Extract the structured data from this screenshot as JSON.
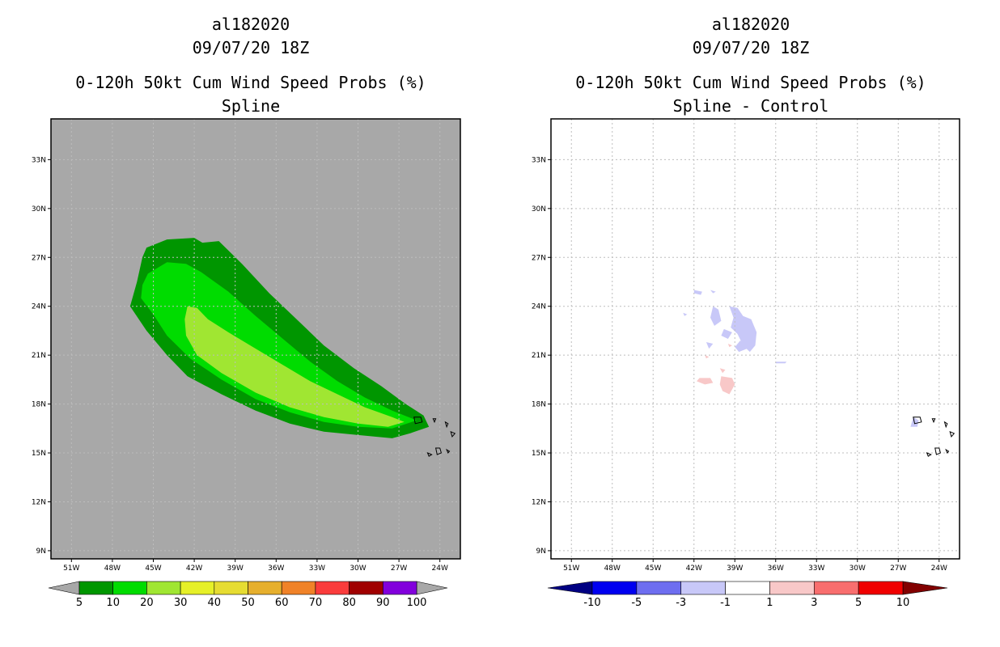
{
  "chart_data": [
    {
      "type": "heatmap",
      "title_lines": [
        "al182020",
        "09/07/20 18Z",
        "0-120h 50kt Cum Wind Speed Probs (%)",
        "Spline"
      ],
      "lon_labels": [
        "51W",
        "48W",
        "45W",
        "42W",
        "39W",
        "36W",
        "33W",
        "30W",
        "27W",
        "24W"
      ],
      "lat_labels": [
        "9N",
        "12N",
        "15N",
        "18N",
        "21N",
        "24N",
        "27N",
        "30N",
        "33N"
      ],
      "lon_range": [
        -52.5,
        -22.5
      ],
      "lat_range": [
        8.5,
        35.5
      ],
      "background_color": "#a8a8a8",
      "levels": [
        "5",
        "10",
        "20",
        "30",
        "40",
        "50",
        "60",
        "70",
        "80",
        "90",
        "100"
      ],
      "level_colors": [
        "#009600",
        "#00dc00",
        "#a0e632",
        "#e6f028",
        "#e6dc32",
        "#e6af2d",
        "#f08228",
        "#fa3c3c",
        "#a00000",
        "#8200dc"
      ],
      "contours": [
        {
          "min": 5,
          "color": "#009600",
          "polygon": [
            [
              -45.5,
              27.6
            ],
            [
              -44,
              28.1
            ],
            [
              -42,
              28.2
            ],
            [
              -41.4,
              27.9
            ],
            [
              -40.2,
              28.0
            ],
            [
              -38.5,
              26.6
            ],
            [
              -36.5,
              24.8
            ],
            [
              -34.5,
              23.2
            ],
            [
              -32.5,
              21.6
            ],
            [
              -30.3,
              20.2
            ],
            [
              -28.3,
              19.1
            ],
            [
              -26.5,
              18.0
            ],
            [
              -25.2,
              17.3
            ],
            [
              -24.8,
              16.6
            ],
            [
              -26.2,
              16.2
            ],
            [
              -27.5,
              15.9
            ],
            [
              -30,
              16.1
            ],
            [
              -32.5,
              16.3
            ],
            [
              -35,
              16.8
            ],
            [
              -37.5,
              17.6
            ],
            [
              -40,
              18.6
            ],
            [
              -42.5,
              19.7
            ],
            [
              -44,
              21.0
            ],
            [
              -45.5,
              22.5
            ],
            [
              -46.7,
              24.0
            ],
            [
              -46.2,
              25.5
            ],
            [
              -45.8,
              27.0
            ]
          ]
        },
        {
          "min": 10,
          "color": "#00dc00",
          "polygon": [
            [
              -45.4,
              26.0
            ],
            [
              -44,
              26.7
            ],
            [
              -42.6,
              26.6
            ],
            [
              -41.5,
              26.1
            ],
            [
              -39.5,
              24.9
            ],
            [
              -37.5,
              23.4
            ],
            [
              -35.5,
              22.0
            ],
            [
              -33.5,
              20.6
            ],
            [
              -31.5,
              19.4
            ],
            [
              -29.5,
              18.4
            ],
            [
              -27.5,
              17.6
            ],
            [
              -25.7,
              17.0
            ],
            [
              -27.5,
              16.5
            ],
            [
              -30,
              16.6
            ],
            [
              -32.5,
              16.9
            ],
            [
              -35,
              17.5
            ],
            [
              -37.5,
              18.3
            ],
            [
              -40,
              19.5
            ],
            [
              -42.3,
              20.8
            ],
            [
              -44,
              22.2
            ],
            [
              -45.0,
              23.5
            ],
            [
              -45.9,
              24.5
            ],
            [
              -45.8,
              25.3
            ]
          ]
        },
        {
          "min": 20,
          "color": "#a0e632",
          "polygon": [
            [
              -42.5,
              24.0
            ],
            [
              -41.8,
              23.9
            ],
            [
              -41.0,
              23.2
            ],
            [
              -39.5,
              22.4
            ],
            [
              -37.5,
              21.4
            ],
            [
              -35.5,
              20.4
            ],
            [
              -33.5,
              19.4
            ],
            [
              -31.5,
              18.6
            ],
            [
              -29.5,
              17.8
            ],
            [
              -27.5,
              17.2
            ],
            [
              -26.6,
              16.9
            ],
            [
              -27.8,
              16.6
            ],
            [
              -30,
              16.8
            ],
            [
              -32.5,
              17.2
            ],
            [
              -35,
              17.8
            ],
            [
              -37.5,
              18.7
            ],
            [
              -40,
              19.9
            ],
            [
              -41.8,
              21.0
            ],
            [
              -42.6,
              22.2
            ],
            [
              -42.7,
              23.2
            ]
          ]
        }
      ]
    },
    {
      "type": "heatmap",
      "title_lines": [
        "al182020",
        "09/07/20 18Z",
        "0-120h 50kt Cum Wind Speed Probs (%)",
        "Spline - Control"
      ],
      "lon_labels": [
        "51W",
        "48W",
        "45W",
        "42W",
        "39W",
        "36W",
        "33W",
        "30W",
        "27W",
        "24W"
      ],
      "lat_labels": [
        "9N",
        "12N",
        "15N",
        "18N",
        "21N",
        "24N",
        "27N",
        "30N",
        "33N"
      ],
      "lon_range": [
        -52.5,
        -22.5
      ],
      "lat_range": [
        8.5,
        35.5
      ],
      "background_color": "#ffffff",
      "levels": [
        "-10",
        "-5",
        "-3",
        "-1",
        "1",
        "3",
        "5",
        "10"
      ],
      "level_colors": [
        "#000082",
        "#0000f0",
        "#6e6ef0",
        "#c8c8f8",
        "#ffffff",
        "#f8c8c8",
        "#f86e6e",
        "#f00000",
        "#820000"
      ],
      "contours": [
        {
          "value": -2,
          "color": "#c8c8f8",
          "polygon": [
            [
              -39.4,
              24.0
            ],
            [
              -38.8,
              23.9
            ],
            [
              -38.4,
              23.4
            ],
            [
              -37.8,
              23.2
            ],
            [
              -37.4,
              22.4
            ],
            [
              -37.5,
              21.6
            ],
            [
              -37.9,
              21.2
            ],
            [
              -38.4,
              21.6
            ],
            [
              -38.8,
              22.3
            ],
            [
              -39.3,
              22.7
            ],
            [
              -39.1,
              23.3
            ]
          ]
        },
        {
          "value": -2,
          "color": "#c8c8f8",
          "polygon": [
            [
              -40.6,
              24.0
            ],
            [
              -40.2,
              23.8
            ],
            [
              -40.0,
              23.1
            ],
            [
              -40.5,
              22.8
            ],
            [
              -40.8,
              23.3
            ]
          ]
        },
        {
          "value": -2,
          "color": "#c8c8f8",
          "polygon": [
            [
              -39.8,
              22.6
            ],
            [
              -39.2,
              22.4
            ],
            [
              -39.5,
              22.0
            ],
            [
              -40.0,
              22.2
            ]
          ]
        },
        {
          "value": -2,
          "color": "#c8c8f8",
          "polygon": [
            [
              -41.1,
              21.8
            ],
            [
              -40.6,
              21.7
            ],
            [
              -40.9,
              21.4
            ]
          ]
        },
        {
          "value": -2,
          "color": "#c8c8f8",
          "polygon": [
            [
              -38.6,
              21.9
            ],
            [
              -38.1,
              21.4
            ],
            [
              -38.7,
              21.2
            ],
            [
              -39.0,
              21.5
            ]
          ]
        },
        {
          "value": -2,
          "color": "#c8c8f8",
          "polygon": [
            [
              -42.0,
              25.0
            ],
            [
              -41.4,
              24.9
            ],
            [
              -41.5,
              24.7
            ],
            [
              -42.0,
              24.8
            ]
          ]
        },
        {
          "value": -2,
          "color": "#c8c8f8",
          "polygon": [
            [
              -40.8,
              25.0
            ],
            [
              -40.4,
              24.9
            ],
            [
              -40.6,
              24.8
            ]
          ]
        },
        {
          "value": -2,
          "color": "#c8c8f8",
          "polygon": [
            [
              -42.8,
              23.6
            ],
            [
              -42.5,
              23.5
            ],
            [
              -42.7,
              23.4
            ]
          ]
        },
        {
          "value": -2,
          "color": "#c8c8f8",
          "polygon": [
            [
              -36.0,
              20.6
            ],
            [
              -35.2,
              20.6
            ],
            [
              -35.3,
              20.5
            ],
            [
              -36.0,
              20.5
            ]
          ]
        },
        {
          "value": -2,
          "color": "#c8c8f8",
          "polygon": [
            [
              -25.9,
              17.2
            ],
            [
              -25.5,
              17.0
            ],
            [
              -25.6,
              16.6
            ],
            [
              -26.1,
              16.6
            ]
          ]
        },
        {
          "value": 2,
          "color": "#f8c8c8",
          "polygon": [
            [
              -40.0,
              19.7
            ],
            [
              -39.2,
              19.6
            ],
            [
              -39.0,
              19.2
            ],
            [
              -39.4,
              18.6
            ],
            [
              -39.9,
              18.8
            ],
            [
              -40.1,
              19.2
            ]
          ]
        },
        {
          "value": 2,
          "color": "#f8c8c8",
          "polygon": [
            [
              -41.6,
              19.6
            ],
            [
              -40.8,
              19.6
            ],
            [
              -40.6,
              19.3
            ],
            [
              -41.2,
              19.2
            ],
            [
              -41.8,
              19.4
            ]
          ]
        },
        {
          "value": 2,
          "color": "#f8c8c8",
          "polygon": [
            [
              -40.1,
              20.2
            ],
            [
              -39.7,
              20.1
            ],
            [
              -39.9,
              19.9
            ]
          ]
        },
        {
          "value": 2,
          "color": "#f8c8c8",
          "polygon": [
            [
              -41.2,
              21.0
            ],
            [
              -40.9,
              20.9
            ],
            [
              -41.1,
              20.8
            ]
          ]
        },
        {
          "value": 2,
          "color": "#f8c8c8",
          "polygon": [
            [
              -39.5,
              21.7
            ],
            [
              -39.2,
              21.6
            ],
            [
              -39.4,
              21.5
            ]
          ]
        }
      ]
    }
  ]
}
